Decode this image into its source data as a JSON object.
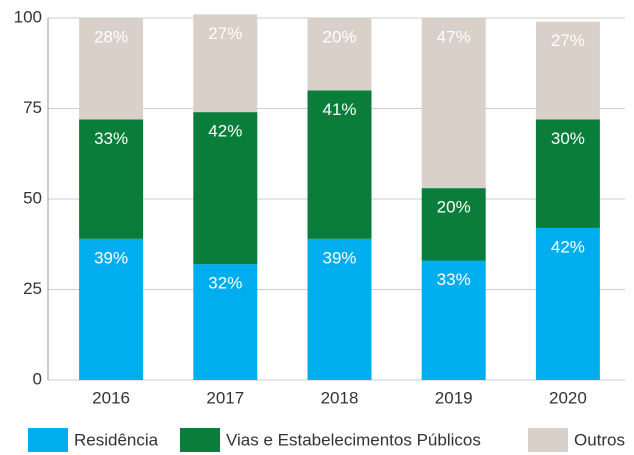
{
  "chart_data": {
    "type": "stacked_bar",
    "categories": [
      "2016",
      "2017",
      "2018",
      "2019",
      "2020"
    ],
    "series": [
      {
        "name": "Residência",
        "color": "#00aeef",
        "values": [
          39,
          32,
          39,
          33,
          42
        ],
        "value_labels": [
          "39%",
          "32%",
          "39%",
          "33%",
          "42%"
        ]
      },
      {
        "name": "Vias e Estabelecimentos Públicos",
        "color": "#0a7d3b",
        "values": [
          33,
          42,
          41,
          20,
          30
        ],
        "value_labels": [
          "33%",
          "42%",
          "41%",
          "20%",
          "30%"
        ]
      },
      {
        "name": "Outros",
        "color": "#d9d0c9",
        "values": [
          28,
          27,
          20,
          47,
          27
        ],
        "value_labels": [
          "28%",
          "27%",
          "20%",
          "47%",
          "27%"
        ]
      }
    ],
    "ylim": [
      0,
      100
    ],
    "yticks": [
      0,
      25,
      50,
      75,
      100
    ],
    "grid": true,
    "legend": "bottom"
  }
}
